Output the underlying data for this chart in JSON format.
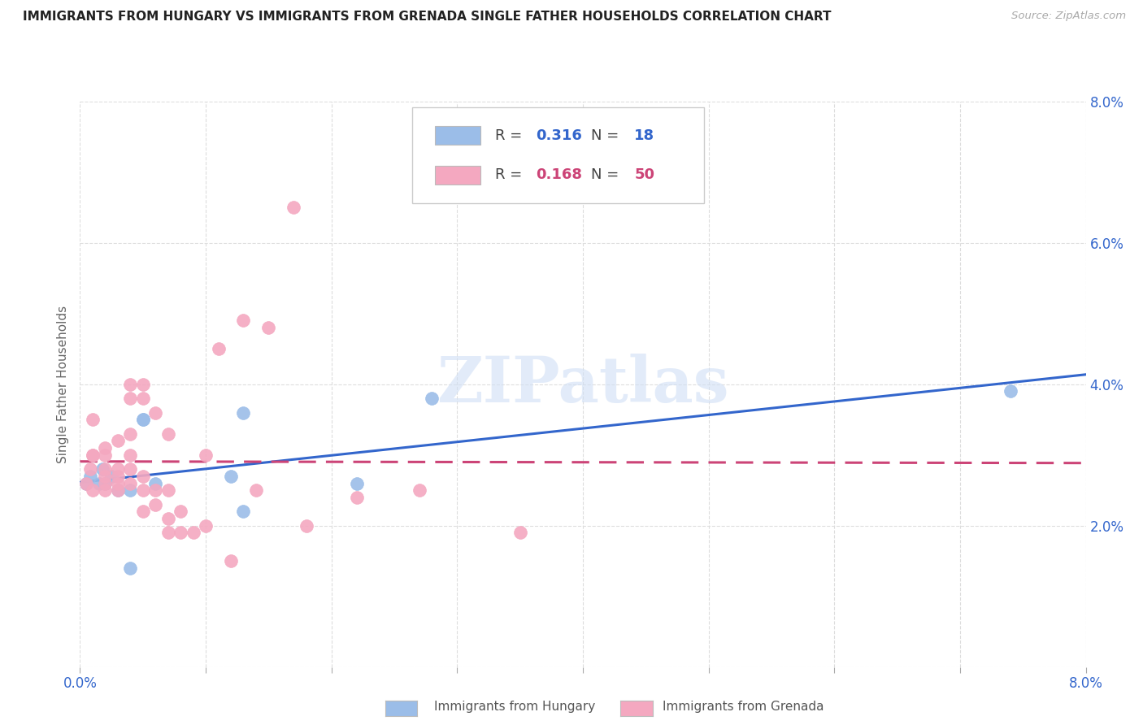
{
  "title": "IMMIGRANTS FROM HUNGARY VS IMMIGRANTS FROM GRENADA SINGLE FATHER HOUSEHOLDS CORRELATION CHART",
  "source": "Source: ZipAtlas.com",
  "ylabel": "Single Father Households",
  "xlim": [
    0.0,
    0.08
  ],
  "ylim": [
    0.0,
    0.08
  ],
  "xtick_positions": [
    0.0,
    0.01,
    0.02,
    0.03,
    0.04,
    0.05,
    0.06,
    0.07,
    0.08
  ],
  "xtick_labels": [
    "0.0%",
    "",
    "",
    "",
    "",
    "",
    "",
    "",
    "8.0%"
  ],
  "ytick_positions": [
    0.0,
    0.02,
    0.04,
    0.06,
    0.08
  ],
  "ytick_labels_right": [
    "",
    "2.0%",
    "4.0%",
    "6.0%",
    "8.0%"
  ],
  "watermark": "ZIPatlas",
  "hungary_color": "#9bbde8",
  "grenada_color": "#f4a8c0",
  "hungary_line_color": "#3366cc",
  "grenada_line_color": "#cc4477",
  "legend_R_hungary": "0.316",
  "legend_N_hungary": "18",
  "legend_R_grenada": "0.168",
  "legend_N_grenada": "50",
  "legend_color_hungary": "#3366cc",
  "legend_color_grenada": "#cc4477",
  "hungary_x": [
    0.0005,
    0.0008,
    0.0015,
    0.0018,
    0.002,
    0.0025,
    0.003,
    0.004,
    0.004,
    0.005,
    0.005,
    0.006,
    0.012,
    0.013,
    0.013,
    0.022,
    0.028,
    0.074
  ],
  "hungary_y": [
    0.026,
    0.027,
    0.026,
    0.028,
    0.026,
    0.027,
    0.025,
    0.025,
    0.014,
    0.035,
    0.035,
    0.026,
    0.027,
    0.022,
    0.036,
    0.026,
    0.038,
    0.039
  ],
  "grenada_x": [
    0.0005,
    0.0008,
    0.001,
    0.001,
    0.001,
    0.001,
    0.002,
    0.002,
    0.002,
    0.002,
    0.002,
    0.002,
    0.003,
    0.003,
    0.003,
    0.003,
    0.003,
    0.004,
    0.004,
    0.004,
    0.004,
    0.004,
    0.004,
    0.005,
    0.005,
    0.005,
    0.005,
    0.005,
    0.006,
    0.006,
    0.006,
    0.007,
    0.007,
    0.007,
    0.007,
    0.008,
    0.008,
    0.009,
    0.01,
    0.01,
    0.011,
    0.012,
    0.013,
    0.014,
    0.015,
    0.017,
    0.018,
    0.022,
    0.027,
    0.035
  ],
  "grenada_y": [
    0.026,
    0.028,
    0.03,
    0.03,
    0.035,
    0.025,
    0.025,
    0.026,
    0.027,
    0.028,
    0.03,
    0.031,
    0.025,
    0.026,
    0.027,
    0.028,
    0.032,
    0.026,
    0.028,
    0.03,
    0.033,
    0.038,
    0.04,
    0.022,
    0.025,
    0.027,
    0.038,
    0.04,
    0.023,
    0.025,
    0.036,
    0.019,
    0.021,
    0.025,
    0.033,
    0.019,
    0.022,
    0.019,
    0.02,
    0.03,
    0.045,
    0.015,
    0.049,
    0.025,
    0.048,
    0.065,
    0.02,
    0.024,
    0.025,
    0.019
  ],
  "background_color": "#ffffff",
  "grid_color": "#dddddd"
}
